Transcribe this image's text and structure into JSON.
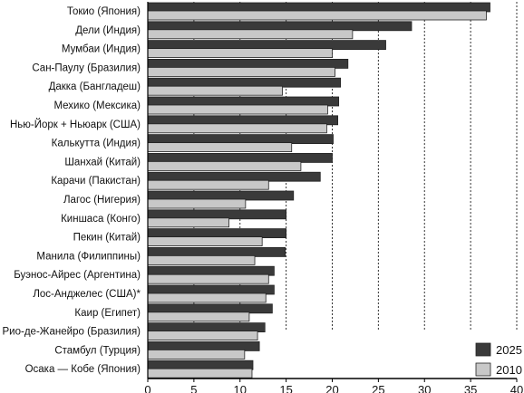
{
  "chart_data": {
    "type": "bar",
    "orientation": "horizontal",
    "categories": [
      "Токио (Япония)",
      "Дели (Индия)",
      "Мумбаи (Индия)",
      "Сан-Паулу (Бразилия)",
      "Дакка (Бангладеш)",
      "Мехико (Мексика)",
      "Нью-Йорк + Ньюарк (США)",
      "Калькутта (Индия)",
      "Шанхай (Китай)",
      "Карачи (Пакистан)",
      "Лагос (Нигерия)",
      "Киншаса (Конго)",
      "Пекин (Китай)",
      "Манила (Филиппины)",
      "Буэнос-Айрес (Аргентина)",
      "Лос-Анджелес (США)*",
      "Каир (Египет)",
      "Рио-де-Жанейро (Бразилия)",
      "Стамбул (Турция)",
      "Осака — Кобе (Япония)"
    ],
    "series": [
      {
        "name": "2025",
        "color": "#3a3a3a",
        "values": [
          37.1,
          28.6,
          25.8,
          21.7,
          20.9,
          20.7,
          20.6,
          20.1,
          20.0,
          18.7,
          15.8,
          15.0,
          15.0,
          14.9,
          13.7,
          13.7,
          13.5,
          12.7,
          12.1,
          11.4
        ]
      },
      {
        "name": "2010",
        "color": "#c8c8c8",
        "values": [
          36.7,
          22.2,
          20.0,
          20.3,
          14.6,
          19.5,
          19.4,
          15.6,
          16.6,
          13.1,
          10.6,
          8.8,
          12.4,
          11.6,
          13.1,
          12.8,
          11.0,
          11.9,
          10.5,
          11.3
        ]
      }
    ],
    "xlim": [
      0,
      40
    ],
    "xticks": [
      0,
      5,
      10,
      15,
      20,
      25,
      30,
      35,
      40
    ],
    "grid": "vertical dotted",
    "legend_position": "bottom-right"
  }
}
